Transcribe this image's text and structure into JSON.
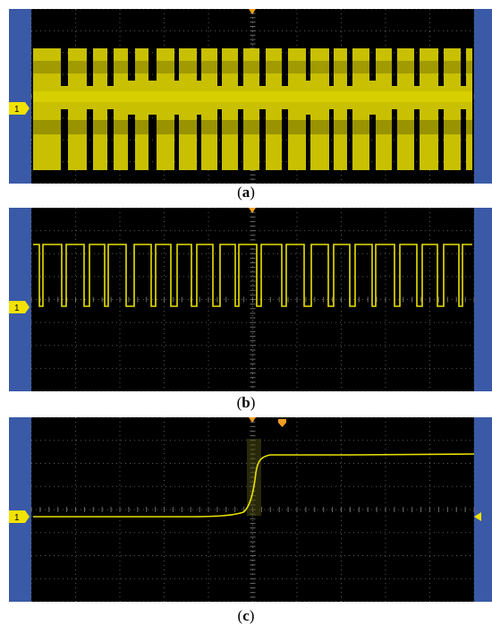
{
  "panels": [
    {
      "id": "a",
      "caption_open": "(",
      "caption_letter": "a",
      "caption_close": ")",
      "channel_label": "1"
    },
    {
      "id": "b",
      "caption_open": "(",
      "caption_letter": "b",
      "caption_close": ")",
      "channel_label": "1"
    },
    {
      "id": "c",
      "caption_open": "(",
      "caption_letter": "c",
      "caption_close": ")",
      "channel_label": "1"
    }
  ],
  "colors": {
    "screen_bg": "#000000",
    "side_bar": "#3a5aa8",
    "trace": "#e8e000",
    "marker": "#f0a020",
    "grid": "#5a5a5a",
    "channel_marker": "#f2e200"
  }
}
